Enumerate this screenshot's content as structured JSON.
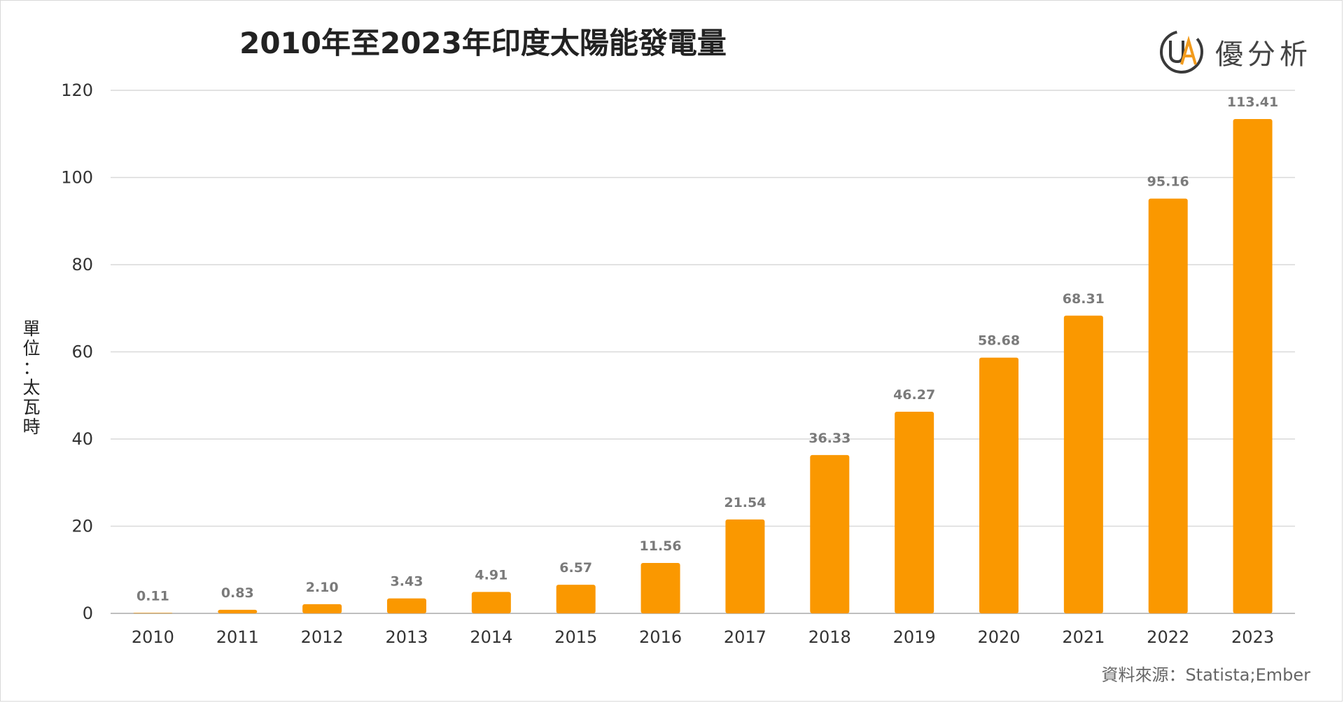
{
  "title": "2010年至2023年印度太陽能發電量",
  "logo": {
    "text": "優分析",
    "mark_letters": "UA",
    "colors": {
      "ring": "#3a3a3a",
      "accent": "#f29b1d"
    }
  },
  "y_unit_label": "單位：太瓦時",
  "source": "資料來源：Statista;Ember",
  "chart_data": {
    "type": "bar",
    "title": "2010年至2023年印度太陽能發電量",
    "xlabel": "",
    "ylabel": "單位：太瓦時",
    "categories": [
      "2010",
      "2011",
      "2012",
      "2013",
      "2014",
      "2015",
      "2016",
      "2017",
      "2018",
      "2019",
      "2020",
      "2021",
      "2022",
      "2023"
    ],
    "values": [
      0.11,
      0.83,
      2.1,
      3.43,
      4.91,
      6.57,
      11.56,
      21.54,
      36.33,
      46.27,
      58.68,
      68.31,
      95.16,
      113.41
    ],
    "data_labels": [
      "0.11",
      "0.83",
      "2.10",
      "3.43",
      "4.91",
      "6.57",
      "11.56",
      "21.54",
      "36.33",
      "46.27",
      "58.68",
      "68.31",
      "95.16",
      "113.41"
    ],
    "ylim": [
      0,
      120
    ],
    "yticks": [
      0,
      20,
      40,
      60,
      80,
      100,
      120
    ],
    "grid": true,
    "legend": "none",
    "colors": {
      "bar": "#fa9800",
      "grid": "#d9d9d9",
      "axis": "#bfbfbf"
    }
  }
}
